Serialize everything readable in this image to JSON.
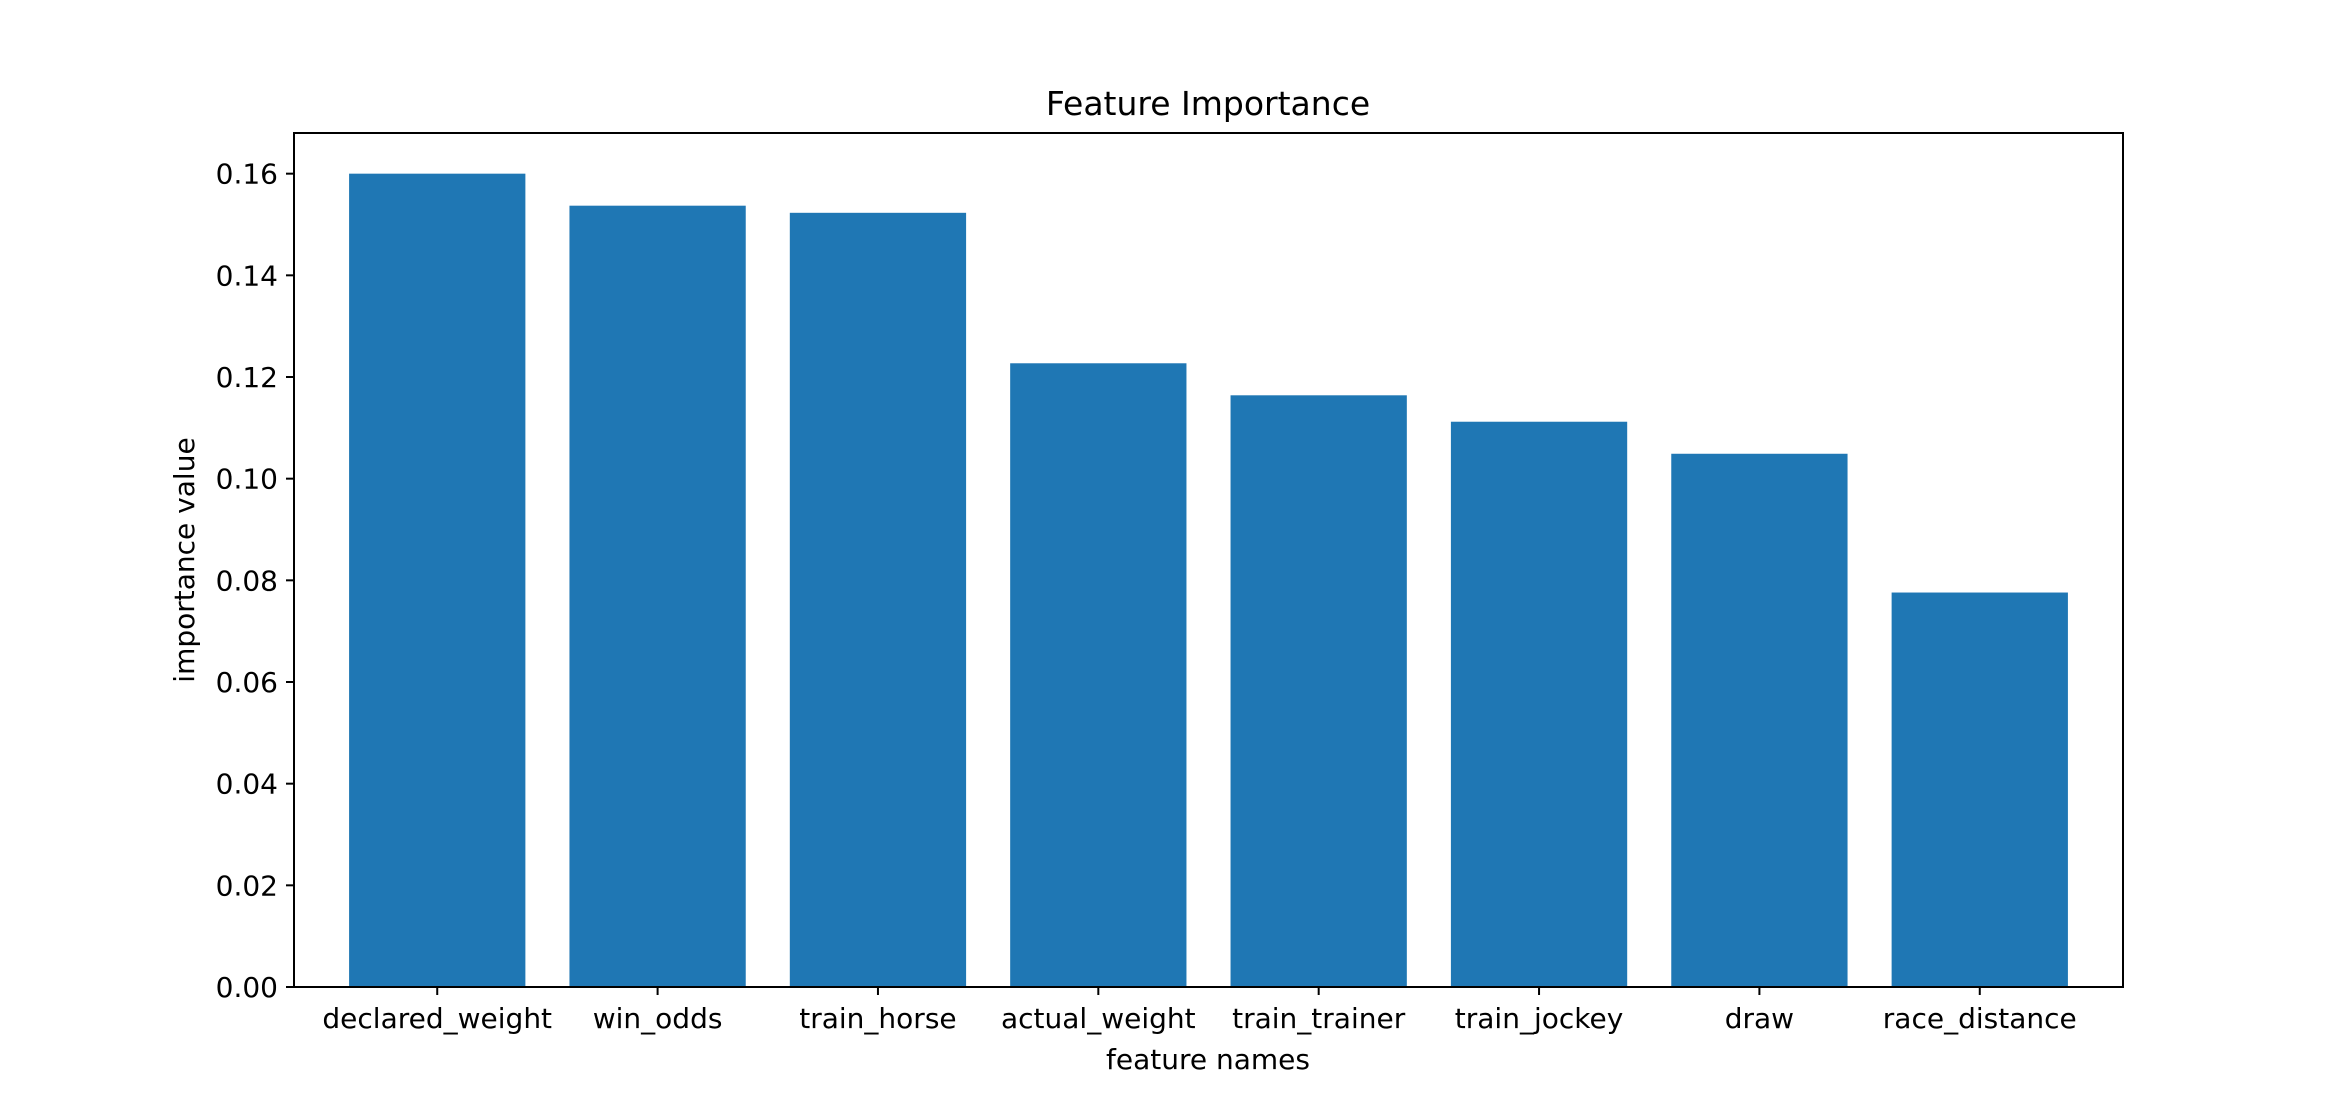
{
  "chart_data": {
    "type": "bar",
    "title": "Feature Importance",
    "xlabel": "feature names",
    "ylabel": "importance value",
    "categories": [
      "declared_weight",
      "win_odds",
      "train_horse",
      "actual_weight",
      "train_trainer",
      "train_jockey",
      "draw",
      "race_distance"
    ],
    "values": [
      0.16,
      0.1537,
      0.1523,
      0.1227,
      0.1164,
      0.1112,
      0.1049,
      0.0776
    ],
    "ylim": [
      0,
      0.168
    ],
    "yticks": [
      "0.00",
      "0.02",
      "0.04",
      "0.06",
      "0.08",
      "0.10",
      "0.12",
      "0.14",
      "0.16"
    ],
    "bar_color": "#1f77b4",
    "grid": false,
    "legend": false
  }
}
